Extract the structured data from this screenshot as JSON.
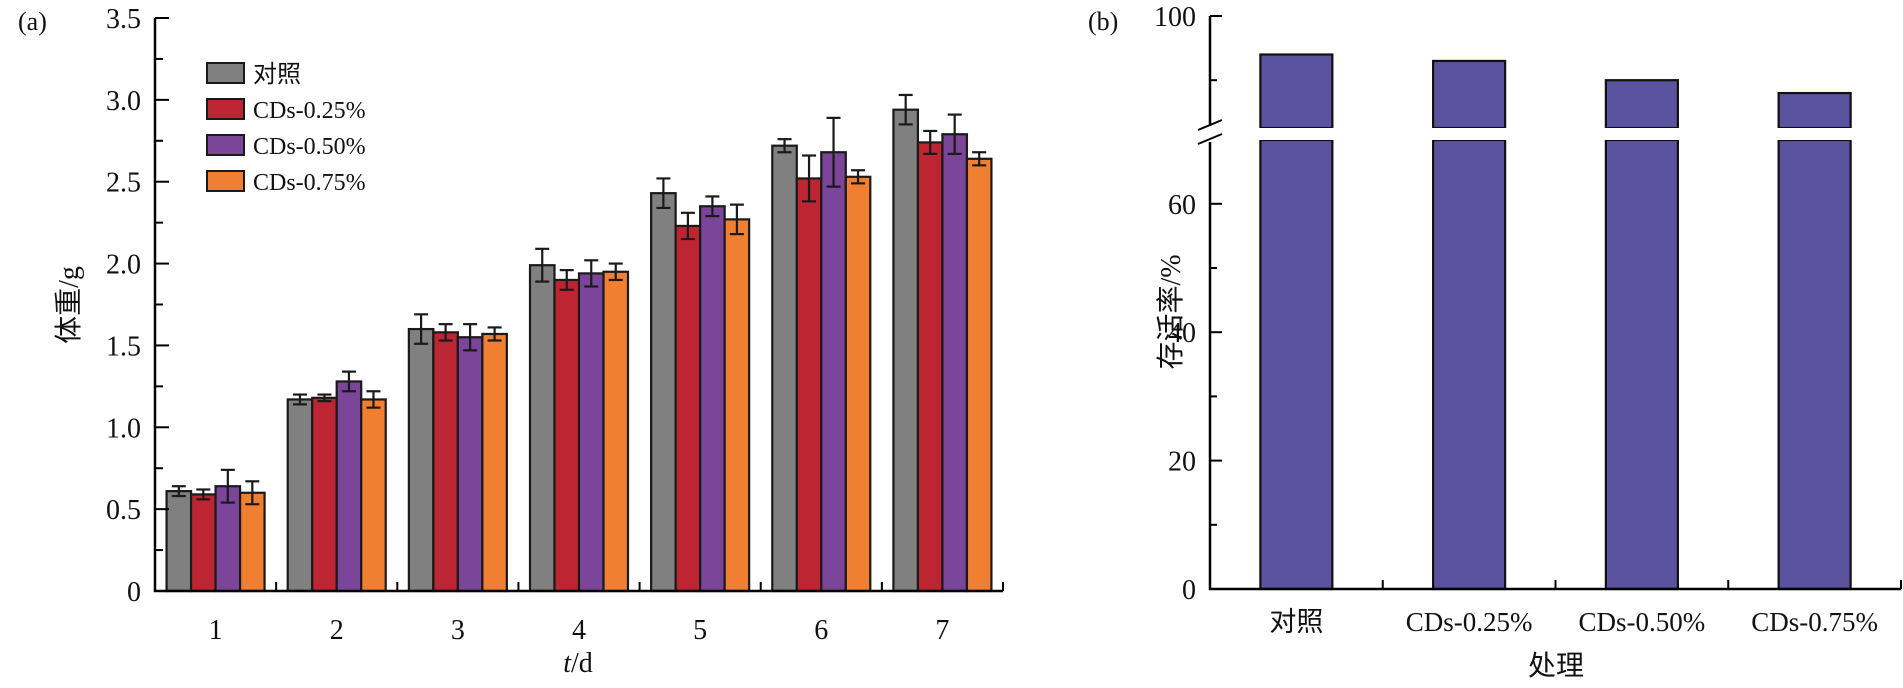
{
  "chart_data": [
    {
      "panel": "(a)",
      "type": "bar",
      "xlabel_italic": "t",
      "xlabel_rest": "/d",
      "ylabel": "体重/g",
      "ylim": [
        0,
        3.5
      ],
      "yticks": [
        "0",
        "0.5",
        "1.0",
        "1.5",
        "2.0",
        "2.5",
        "3.0",
        "3.5"
      ],
      "ytick_values": [
        0,
        0.5,
        1.0,
        1.5,
        2.0,
        2.5,
        3.0,
        3.5
      ],
      "minor_ytick_step": 0.25,
      "categories": [
        "1",
        "2",
        "3",
        "4",
        "5",
        "6",
        "7"
      ],
      "legend_position": "top-left",
      "series": [
        {
          "name": "对照",
          "color": "#808080",
          "values": [
            0.61,
            1.17,
            1.6,
            1.99,
            2.43,
            2.72,
            2.94
          ],
          "errors": [
            0.03,
            0.03,
            0.09,
            0.1,
            0.09,
            0.04,
            0.09
          ]
        },
        {
          "name": "CDs-0.25%",
          "color": "#BE2532",
          "values": [
            0.59,
            1.18,
            1.58,
            1.9,
            2.23,
            2.52,
            2.74
          ],
          "errors": [
            0.03,
            0.02,
            0.05,
            0.06,
            0.08,
            0.14,
            0.07
          ]
        },
        {
          "name": "CDs-0.50%",
          "color": "#7B4599",
          "values": [
            0.64,
            1.28,
            1.55,
            1.94,
            2.35,
            2.68,
            2.79
          ],
          "errors": [
            0.1,
            0.06,
            0.08,
            0.08,
            0.06,
            0.21,
            0.12
          ]
        },
        {
          "name": "CDs-0.75%",
          "color": "#F07F32",
          "values": [
            0.6,
            1.17,
            1.57,
            1.95,
            2.27,
            2.53,
            2.64
          ],
          "errors": [
            0.07,
            0.05,
            0.04,
            0.05,
            0.09,
            0.04,
            0.04
          ]
        }
      ]
    },
    {
      "panel": "(b)",
      "type": "bar",
      "xlabel": "处理",
      "ylabel": "存活率/%",
      "ylim": [
        0,
        100
      ],
      "axis_break": [
        70,
        82.6
      ],
      "yticks": [
        "0",
        "20",
        "40",
        "60",
        "100"
      ],
      "ytick_values": [
        0,
        20,
        40,
        60,
        100
      ],
      "minor_ytick_values": [
        10,
        30,
        50,
        90
      ],
      "categories": [
        "对照",
        "CDs-0.25%",
        "CDs-0.50%",
        "CDs-0.75%"
      ],
      "bar_color": "#5B52A0",
      "values": [
        94,
        93,
        90,
        88
      ]
    }
  ]
}
